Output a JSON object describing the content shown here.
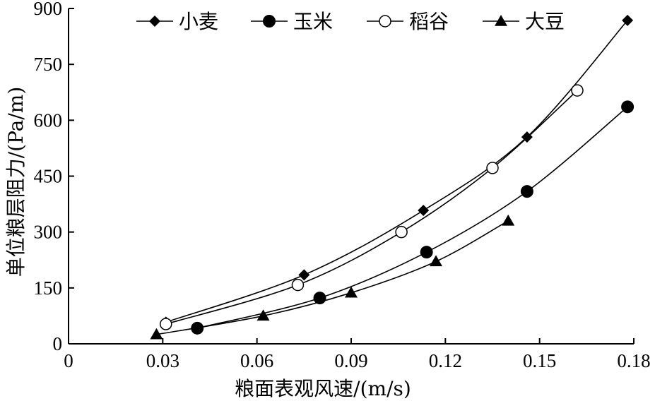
{
  "chart_data": {
    "type": "line",
    "title": "",
    "xlabel": "粮面表观风速/(m/s)",
    "ylabel": "单位粮层阻力/(Pa/m)",
    "xlim": [
      0,
      0.18
    ],
    "ylim": [
      0,
      900
    ],
    "x_ticks": [
      "0",
      "0.03",
      "0.06",
      "0.09",
      "0.12",
      "0.15",
      "0.18"
    ],
    "y_ticks": [
      "0",
      "150",
      "300",
      "450",
      "600",
      "750",
      "900"
    ],
    "grid": false,
    "legend_position": "top",
    "series": [
      {
        "name": "小麦",
        "marker": "filled-diamond",
        "x": [
          0.031,
          0.075,
          0.113,
          0.146,
          0.178
        ],
        "y": [
          58,
          185,
          358,
          555,
          868
        ]
      },
      {
        "name": "玉米",
        "marker": "filled-circle",
        "x": [
          0.041,
          0.08,
          0.114,
          0.146,
          0.178
        ],
        "y": [
          42,
          123,
          246,
          409,
          636
        ]
      },
      {
        "name": "稻谷",
        "marker": "open-circle",
        "x": [
          0.031,
          0.073,
          0.106,
          0.135,
          0.162
        ],
        "y": [
          53,
          158,
          300,
          472,
          680
        ]
      },
      {
        "name": "大豆",
        "marker": "filled-triangle",
        "x": [
          0.028,
          0.062,
          0.09,
          0.117,
          0.14
        ],
        "y": [
          25,
          75,
          137,
          221,
          330
        ]
      }
    ]
  }
}
